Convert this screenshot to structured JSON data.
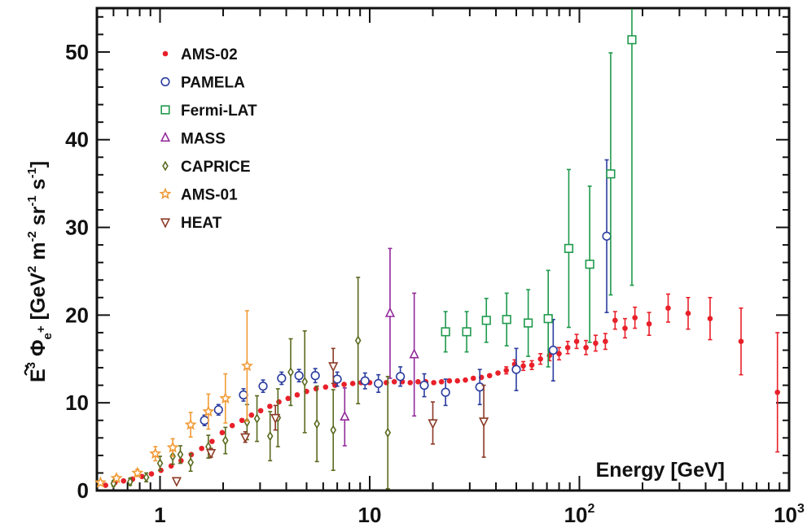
{
  "chart_data": {
    "type": "scatter",
    "xscale": "log",
    "xlim": [
      0.5,
      1000
    ],
    "ylim": [
      0,
      55
    ],
    "grid": false,
    "legend_position": "top-left",
    "xlabel": "Energy [GeV]",
    "ylabel": {
      "prefix": "E",
      "sup3": "3",
      "phi": "Φ",
      "sub": "e",
      "subsup": "+",
      "bracket_open": " [GeV",
      "sup2": "2",
      "m": " m",
      "sup_m": "-2",
      "sr": " sr",
      "sup_sr": "-1",
      "s": " s",
      "sup_s": "-1",
      "bracket_close": "]"
    },
    "yticks": [
      "0",
      "10",
      "20",
      "30",
      "40",
      "50"
    ],
    "xticks": [
      {
        "base": "1",
        "exp": ""
      },
      {
        "base": "10",
        "exp": ""
      },
      {
        "base": "10",
        "exp": "2"
      },
      {
        "base": "10",
        "exp": "3"
      }
    ],
    "series": [
      {
        "name": "AMS-02",
        "marker": "dot",
        "color": "#e8202a",
        "points": [
          [
            0.55,
            0.6,
            0
          ],
          [
            0.61,
            0.9,
            0
          ],
          [
            0.67,
            1.1,
            0
          ],
          [
            0.74,
            1.3,
            0
          ],
          [
            0.82,
            1.6,
            0
          ],
          [
            0.91,
            1.9,
            0
          ],
          [
            1.01,
            2.3,
            0
          ],
          [
            1.13,
            2.8,
            0
          ],
          [
            1.26,
            3.4,
            0
          ],
          [
            1.41,
            4.1,
            0
          ],
          [
            1.58,
            4.8,
            0
          ],
          [
            1.77,
            5.6,
            0
          ],
          [
            1.98,
            6.6,
            0
          ],
          [
            2.21,
            7.4,
            0
          ],
          [
            2.46,
            8.0,
            0
          ],
          [
            2.73,
            8.6,
            0
          ],
          [
            3.02,
            9.1,
            0
          ],
          [
            3.34,
            9.6,
            0
          ],
          [
            3.69,
            10.1,
            0
          ],
          [
            4.08,
            10.5,
            0
          ],
          [
            4.51,
            10.9,
            0
          ],
          [
            5.0,
            11.3,
            0
          ],
          [
            5.55,
            11.6,
            0
          ],
          [
            6.16,
            11.8,
            0
          ],
          [
            6.83,
            12.0,
            0
          ],
          [
            7.55,
            12.1,
            0
          ],
          [
            8.3,
            12.2,
            0
          ],
          [
            9.1,
            12.3,
            0
          ],
          [
            10.0,
            12.3,
            0
          ],
          [
            11.0,
            12.3,
            0
          ],
          [
            12.0,
            12.3,
            0
          ],
          [
            13.1,
            12.4,
            0
          ],
          [
            14.3,
            12.4,
            0
          ],
          [
            15.6,
            12.3,
            0
          ],
          [
            17.0,
            12.4,
            0
          ],
          [
            18.5,
            12.4,
            0
          ],
          [
            20.2,
            12.3,
            0
          ],
          [
            22.0,
            12.4,
            0
          ],
          [
            24.0,
            12.5,
            0
          ],
          [
            26.2,
            12.5,
            0
          ],
          [
            28.6,
            12.6,
            0
          ],
          [
            31.2,
            12.8,
            0
          ],
          [
            34.1,
            12.9,
            0
          ],
          [
            37.3,
            13.1,
            0
          ],
          [
            40.9,
            13.4,
            0
          ],
          [
            44.8,
            13.7,
            0.4
          ],
          [
            49.1,
            14.4,
            0.5
          ],
          [
            54.0,
            14.2,
            0.5
          ],
          [
            59.3,
            14.3,
            0.5
          ],
          [
            65.2,
            15.0,
            0.6
          ],
          [
            72.0,
            15.4,
            0.6
          ],
          [
            80.0,
            15.6,
            0.7
          ],
          [
            88.0,
            16.3,
            0.7
          ],
          [
            97.0,
            17.0,
            0.8
          ],
          [
            107.5,
            16.3,
            0.8
          ],
          [
            119.5,
            16.8,
            0.9
          ],
          [
            133.0,
            17.0,
            0.9
          ],
          [
            148.0,
            19.4,
            1.0
          ],
          [
            165.0,
            18.5,
            1.1
          ],
          [
            184.0,
            19.7,
            1.2
          ],
          [
            215.0,
            19.0,
            1.3
          ],
          [
            265.0,
            20.8,
            1.6
          ],
          [
            330.0,
            20.2,
            1.8
          ],
          [
            420.0,
            19.6,
            2.4
          ],
          [
            590.0,
            17.0,
            3.8
          ],
          [
            880.0,
            11.2,
            6.8
          ]
        ]
      },
      {
        "name": "PAMELA",
        "marker": "circle",
        "color": "#2a3c9e",
        "points": [
          [
            1.63,
            8.0,
            0.6
          ],
          [
            1.9,
            9.2,
            0.6
          ],
          [
            2.5,
            10.9,
            0.7
          ],
          [
            3.1,
            11.9,
            0.7
          ],
          [
            3.8,
            12.8,
            0.7
          ],
          [
            4.6,
            13.1,
            0.7
          ],
          [
            5.5,
            13.1,
            0.8
          ],
          [
            7.0,
            12.7,
            0.8
          ],
          [
            9.5,
            12.5,
            0.9
          ],
          [
            11.0,
            12.2,
            1.0
          ],
          [
            14.0,
            13.0,
            1.1
          ],
          [
            18.2,
            12.0,
            1.3
          ],
          [
            23.0,
            11.2,
            1.5
          ],
          [
            33.5,
            11.8,
            2.0
          ],
          [
            50.0,
            13.8,
            2.4
          ],
          [
            75.0,
            16.0,
            3.5
          ],
          [
            135.0,
            29.0,
            8.7
          ]
        ]
      },
      {
        "name": "Fermi-LAT",
        "marker": "square",
        "color": "#1f9a4c",
        "points": [
          [
            23.0,
            18.1,
            2.3
          ],
          [
            29.0,
            18.1,
            2.3
          ],
          [
            36.0,
            19.4,
            2.5
          ],
          [
            45.0,
            19.5,
            3.0
          ],
          [
            57.0,
            19.1,
            3.8
          ],
          [
            71.0,
            19.6,
            5.5
          ],
          [
            89.0,
            27.6,
            9.0
          ],
          [
            112.0,
            25.8,
            8.9
          ],
          [
            141.0,
            36.1,
            13.8
          ],
          [
            178.0,
            51.4,
            28.0
          ]
        ]
      },
      {
        "name": "MASS",
        "marker": "triangle",
        "color": "#932a9b",
        "points": [
          [
            7.6,
            8.4,
            3.3
          ],
          [
            12.5,
            20.2,
            7.4
          ],
          [
            16.3,
            15.5,
            7.0
          ]
        ]
      },
      {
        "name": "CAPRICE",
        "marker": "diamond",
        "color": "#5a6a1e",
        "points": [
          [
            0.6,
            0.8,
            0.3
          ],
          [
            0.72,
            1.0,
            0.4
          ],
          [
            0.86,
            1.5,
            0.5
          ],
          [
            1.0,
            3.1,
            0.8
          ],
          [
            1.15,
            3.9,
            0.9
          ],
          [
            1.25,
            4.1,
            1.0
          ],
          [
            1.4,
            3.2,
            1.0
          ],
          [
            1.7,
            5.0,
            1.3
          ],
          [
            2.05,
            5.7,
            1.5
          ],
          [
            2.6,
            7.8,
            2.0
          ],
          [
            2.9,
            8.2,
            2.6
          ],
          [
            3.35,
            6.2,
            2.8
          ],
          [
            3.65,
            8.3,
            3.3
          ],
          [
            4.2,
            13.5,
            3.8
          ],
          [
            4.9,
            12.4,
            5.8
          ],
          [
            5.6,
            7.6,
            4.3
          ],
          [
            6.7,
            6.9,
            4.6
          ],
          [
            8.8,
            17.1,
            7.2
          ],
          [
            12.2,
            6.6,
            6.4
          ]
        ]
      },
      {
        "name": "AMS-01",
        "marker": "star",
        "color": "#f19a36",
        "points": [
          [
            0.52,
            0.9,
            0.2
          ],
          [
            0.62,
            1.4,
            0.3
          ],
          [
            0.78,
            2.0,
            0.4
          ],
          [
            0.95,
            4.2,
            0.8
          ],
          [
            1.15,
            4.9,
            1.0
          ],
          [
            1.4,
            7.5,
            1.4
          ],
          [
            1.7,
            9.0,
            2.0
          ],
          [
            2.05,
            10.5,
            2.8
          ],
          [
            2.6,
            14.2,
            6.3
          ]
        ]
      },
      {
        "name": "HEAT",
        "marker": "triangle-down",
        "color": "#8b3a26",
        "points": [
          [
            1.2,
            1.1,
            0.2
          ],
          [
            1.75,
            4.3,
            0.5
          ],
          [
            2.55,
            6.1,
            0.6
          ],
          [
            3.55,
            8.3,
            1.4
          ],
          [
            6.7,
            14.2,
            2.0
          ],
          [
            20.0,
            7.7,
            2.4
          ],
          [
            35.0,
            7.9,
            4.1
          ]
        ]
      }
    ],
    "legend": [
      {
        "name": "AMS-02",
        "marker": "dot",
        "color": "#e8202a"
      },
      {
        "name": "PAMELA",
        "marker": "circle",
        "color": "#2a3c9e"
      },
      {
        "name": "Fermi-LAT",
        "marker": "square",
        "color": "#1f9a4c"
      },
      {
        "name": "MASS",
        "marker": "triangle",
        "color": "#932a9b"
      },
      {
        "name": "CAPRICE",
        "marker": "diamond",
        "color": "#5a6a1e"
      },
      {
        "name": "AMS-01",
        "marker": "star",
        "color": "#f19a36"
      },
      {
        "name": "HEAT",
        "marker": "triangle-down",
        "color": "#8b3a26"
      }
    ]
  }
}
